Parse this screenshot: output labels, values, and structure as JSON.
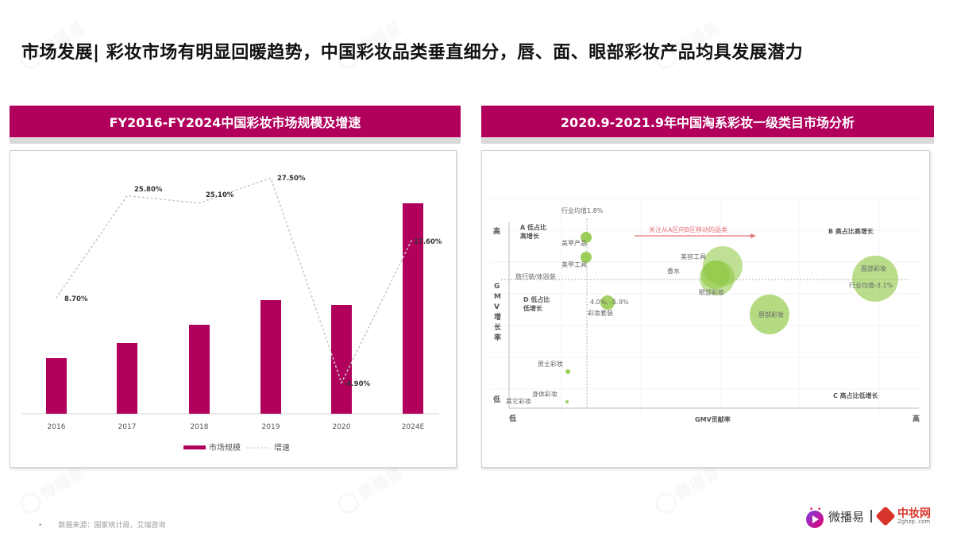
{
  "page": {
    "title": "市场发展| 彩妆市场有明显回暖趋势，中国彩妆品类垂直细分，唇、面、眼部彩妆产品均具发展潜力",
    "source_note": "数据来源：国家统计局，艾瑞咨询",
    "source_bullet": "•",
    "watermark_text": "微播易"
  },
  "left_panel": {
    "title": "FY2016-FY2024中国彩妆市场规模及增速",
    "legend": {
      "bar_label": "市场规模",
      "line_label": "增速"
    }
  },
  "right_panel": {
    "title": "2020.9-2021.9年中国淘系彩妆一级类目市场分析",
    "y_axis_label": [
      "G",
      "M",
      "V",
      "增",
      "长",
      "率"
    ],
    "y_high": "高",
    "y_low": "低",
    "x_low": "低",
    "x_high": "高",
    "x_axis_label": "GMV贡献率",
    "quadrants": {
      "A": [
        "A 低占比",
        "高增长"
      ],
      "B": "B 高占比高增长",
      "C": "C 高占比低增长",
      "D": [
        "D 低占比",
        "低增长"
      ]
    },
    "avg_x_label": "行业均值1.8%",
    "avg_y_label": "行业均值-3.1%",
    "arrow_label": "关注从A区向B区移动的品类",
    "side_label": "旅行装/体验装",
    "point_annotation": "4.0%, -5.9%"
  },
  "logos": {
    "brand1": "微播易",
    "brand2": "中妆网",
    "brand2_sub": "Zghzp. com"
  },
  "colors": {
    "brand": "#b0005c",
    "bubble": "#8cc63f",
    "arrow": "#e8737a",
    "strip": "#d9d9d9"
  },
  "chart_data": [
    {
      "type": "bar",
      "title": "FY2016-FY2024中国彩妆市场规模及增速",
      "categories": [
        "2016",
        "2017",
        "2018",
        "2019",
        "2020",
        "2024E"
      ],
      "series": [
        {
          "name": "市场规模",
          "type": "bar",
          "values": [
            70,
            89,
            112,
            143,
            137,
            265
          ],
          "unit": "relative height (no axis shown)"
        },
        {
          "name": "增速",
          "type": "line",
          "style": "dotted",
          "values": [
            8.7,
            25.8,
            25.1,
            27.5,
            -4.9,
            17.6
          ],
          "labels": [
            "8.70%",
            "25.80%",
            "25.10%",
            "27.50%",
            "-4.90%",
            "17.60%"
          ]
        }
      ],
      "xlabel": "",
      "ylabel": "",
      "legend_position": "bottom",
      "grid": false
    },
    {
      "type": "scatter",
      "title": "2020.9-2021.9年中国淘系彩妆一级类目市场分析",
      "xlabel": "GMV贡献率",
      "ylabel": "GMV增长率",
      "x_axis_ends": [
        "低",
        "高"
      ],
      "y_axis_ends": [
        "低",
        "高"
      ],
      "reference_lines": {
        "x_avg": "行业均值1.8%",
        "y_avg": "行业均值-3.1%"
      },
      "quadrants": [
        "A 低占比高增长",
        "B 高占比高增长",
        "C 高占比低增长",
        "D 低占比低增长"
      ],
      "points": [
        {
          "label": "美甲产品",
          "x": 0.1,
          "y": 0.82,
          "size": 8
        },
        {
          "label": "美甲工具",
          "x": 0.1,
          "y": 0.7,
          "size": 8
        },
        {
          "label": "旅行装/体验装",
          "x": 0.1,
          "y": 0.58,
          "size": 2
        },
        {
          "label": "彩妆套装",
          "x": 0.12,
          "y": 0.46,
          "size": 10,
          "annotation": "4.0%, -5.9%"
        },
        {
          "label": "男士彩妆",
          "x": 0.08,
          "y": 0.16,
          "size": 3
        },
        {
          "label": "身体彩妆",
          "x": 0.08,
          "y": 0.02,
          "size": 2
        },
        {
          "label": "其它彩妆",
          "x": 0.0,
          "y": 0.0,
          "size": 1
        },
        {
          "label": "美容工具",
          "x": 0.5,
          "y": 0.63,
          "size": 25
        },
        {
          "label": "香水",
          "x": 0.48,
          "y": 0.58,
          "size": 18
        },
        {
          "label": "眼部彩妆",
          "x": 0.48,
          "y": 0.54,
          "size": 22
        },
        {
          "label": "唇部彩妆",
          "x": 0.63,
          "y": 0.37,
          "size": 26
        },
        {
          "label": "面部彩妆",
          "x": 0.95,
          "y": 0.62,
          "size": 30
        }
      ],
      "annotation_arrow": "关注从A区向B区移动的品类"
    }
  ]
}
